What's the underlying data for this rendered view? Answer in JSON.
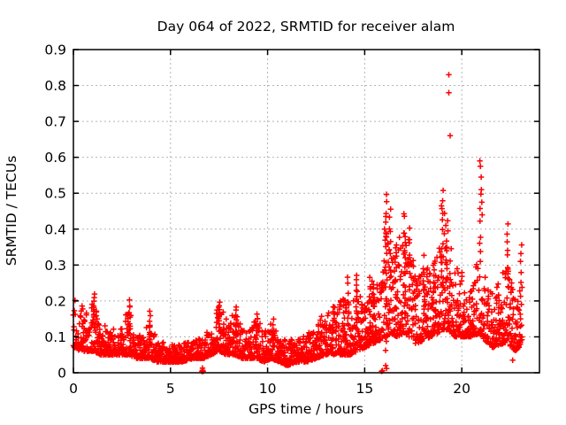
{
  "figure": {
    "background": "#ffffff",
    "text_color": "#000000"
  },
  "chart_data": {
    "type": "scatter",
    "title": "Day 064 of 2022, SRMTID for receiver alam",
    "xlabel": "GPS time / hours",
    "ylabel": "SRMTID / TECUs",
    "xlim": [
      0,
      24
    ],
    "ylim": [
      0,
      0.9
    ],
    "xticks": [
      {
        "v": 0,
        "label": "0"
      },
      {
        "v": 5,
        "label": "5"
      },
      {
        "v": 10,
        "label": "10"
      },
      {
        "v": 15,
        "label": "15"
      },
      {
        "v": 20,
        "label": "20"
      }
    ],
    "yticks": [
      {
        "v": 0.0,
        "label": "0"
      },
      {
        "v": 0.1,
        "label": "0.1"
      },
      {
        "v": 0.2,
        "label": "0.2"
      },
      {
        "v": 0.3,
        "label": "0.3"
      },
      {
        "v": 0.4,
        "label": "0.4"
      },
      {
        "v": 0.5,
        "label": "0.5"
      },
      {
        "v": 0.6,
        "label": "0.6"
      },
      {
        "v": 0.7,
        "label": "0.7"
      },
      {
        "v": 0.8,
        "label": "0.8"
      },
      {
        "v": 0.9,
        "label": "0.9"
      }
    ],
    "grid": true,
    "legend": "none",
    "marker": "plus",
    "marker_color": "#ff0000",
    "grid_color": "#b4b4b4",
    "axis_color": "#000000",
    "sampling": {
      "seed": 123456,
      "n_points": 2500,
      "x_start": 0.0,
      "x_end": 23.1,
      "x_jitter": 0.03,
      "skew": 2.2
    },
    "envelope": [
      [
        0.0,
        0.07,
        0.22
      ],
      [
        0.4,
        0.06,
        0.19
      ],
      [
        0.8,
        0.06,
        0.16
      ],
      [
        1.05,
        0.06,
        0.21
      ],
      [
        1.4,
        0.05,
        0.15
      ],
      [
        1.8,
        0.05,
        0.12
      ],
      [
        2.2,
        0.05,
        0.13
      ],
      [
        2.6,
        0.05,
        0.16
      ],
      [
        2.9,
        0.05,
        0.19
      ],
      [
        3.2,
        0.04,
        0.11
      ],
      [
        3.6,
        0.04,
        0.1
      ],
      [
        3.95,
        0.04,
        0.17
      ],
      [
        4.3,
        0.03,
        0.09
      ],
      [
        5.0,
        0.03,
        0.08
      ],
      [
        5.6,
        0.03,
        0.08
      ],
      [
        6.2,
        0.04,
        0.09
      ],
      [
        6.7,
        0.04,
        0.1
      ],
      [
        7.1,
        0.05,
        0.13
      ],
      [
        7.5,
        0.06,
        0.2
      ],
      [
        7.9,
        0.05,
        0.16
      ],
      [
        8.3,
        0.05,
        0.18
      ],
      [
        8.7,
        0.04,
        0.12
      ],
      [
        9.1,
        0.04,
        0.12
      ],
      [
        9.45,
        0.04,
        0.17
      ],
      [
        9.8,
        0.03,
        0.11
      ],
      [
        10.2,
        0.04,
        0.14
      ],
      [
        10.6,
        0.03,
        0.1
      ],
      [
        11.0,
        0.02,
        0.09
      ],
      [
        11.5,
        0.03,
        0.1
      ],
      [
        12.0,
        0.03,
        0.11
      ],
      [
        12.5,
        0.04,
        0.13
      ],
      [
        13.0,
        0.05,
        0.16
      ],
      [
        13.45,
        0.05,
        0.19
      ],
      [
        13.9,
        0.05,
        0.21
      ],
      [
        14.25,
        0.05,
        0.2
      ],
      [
        14.6,
        0.06,
        0.24
      ],
      [
        15.0,
        0.07,
        0.19
      ],
      [
        15.4,
        0.08,
        0.26
      ],
      [
        15.75,
        0.09,
        0.24
      ],
      [
        16.1,
        0.1,
        0.46
      ],
      [
        16.35,
        0.11,
        0.42
      ],
      [
        16.65,
        0.1,
        0.34
      ],
      [
        17.0,
        0.11,
        0.44
      ],
      [
        17.3,
        0.1,
        0.4
      ],
      [
        17.65,
        0.08,
        0.25
      ],
      [
        18.0,
        0.09,
        0.32
      ],
      [
        18.4,
        0.1,
        0.28
      ],
      [
        18.75,
        0.11,
        0.35
      ],
      [
        19.0,
        0.12,
        0.5
      ],
      [
        19.3,
        0.12,
        0.42
      ],
      [
        19.65,
        0.1,
        0.3
      ],
      [
        20.0,
        0.1,
        0.28
      ],
      [
        20.45,
        0.1,
        0.24
      ],
      [
        20.9,
        0.11,
        0.33
      ],
      [
        21.2,
        0.09,
        0.27
      ],
      [
        21.6,
        0.07,
        0.22
      ],
      [
        22.0,
        0.08,
        0.26
      ],
      [
        22.4,
        0.08,
        0.33
      ],
      [
        22.75,
        0.06,
        0.24
      ],
      [
        23.1,
        0.08,
        0.3
      ]
    ],
    "bursts": [
      [
        1.05,
        0.13,
        0.22,
        10
      ],
      [
        2.9,
        0.11,
        0.21,
        8
      ],
      [
        3.95,
        0.08,
        0.175,
        8
      ],
      [
        7.5,
        0.11,
        0.2,
        10
      ],
      [
        8.35,
        0.09,
        0.19,
        7
      ],
      [
        9.45,
        0.08,
        0.17,
        6
      ],
      [
        10.3,
        0.07,
        0.15,
        6
      ],
      [
        12.75,
        0.08,
        0.16,
        6
      ],
      [
        13.35,
        0.09,
        0.185,
        7
      ],
      [
        13.95,
        0.09,
        0.215,
        7
      ],
      [
        14.15,
        0.12,
        0.27,
        8
      ],
      [
        14.6,
        0.13,
        0.285,
        9
      ],
      [
        15.25,
        0.1,
        0.27,
        8
      ],
      [
        15.45,
        0.14,
        0.26,
        8
      ],
      [
        16.1,
        0.05,
        0.51,
        16
      ],
      [
        16.3,
        0.22,
        0.46,
        10
      ],
      [
        16.6,
        0.18,
        0.38,
        8
      ],
      [
        17.05,
        0.22,
        0.46,
        10
      ],
      [
        17.3,
        0.18,
        0.42,
        9
      ],
      [
        18.05,
        0.16,
        0.33,
        8
      ],
      [
        18.55,
        0.15,
        0.3,
        7
      ],
      [
        19.0,
        0.22,
        0.52,
        13
      ],
      [
        19.25,
        0.18,
        0.44,
        9
      ],
      [
        20.95,
        0.28,
        0.5,
        7
      ],
      [
        22.35,
        0.24,
        0.42,
        8
      ],
      [
        23.05,
        0.18,
        0.37,
        7
      ]
    ],
    "outliers": [
      [
        6.62,
        0.004
      ],
      [
        6.65,
        0.007
      ],
      [
        6.68,
        0.004
      ],
      [
        6.65,
        0.013
      ],
      [
        15.87,
        0.004
      ],
      [
        15.92,
        0.006
      ],
      [
        16.08,
        0.02
      ],
      [
        16.13,
        0.012
      ],
      [
        19.33,
        0.83
      ],
      [
        19.33,
        0.78
      ],
      [
        19.4,
        0.66
      ],
      [
        20.93,
        0.59
      ],
      [
        20.96,
        0.575
      ],
      [
        21.0,
        0.545
      ],
      [
        21.01,
        0.51
      ],
      [
        21.03,
        0.475
      ],
      [
        21.05,
        0.44
      ],
      [
        22.62,
        0.035
      ]
    ]
  }
}
